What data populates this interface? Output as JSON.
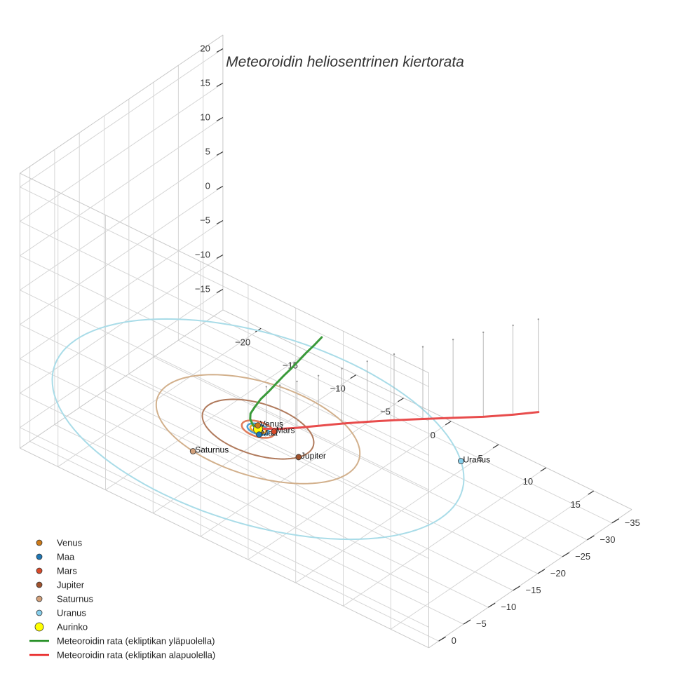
{
  "chart_data": {
    "type": "3d-line",
    "title": "Meteoroidin heliosentrinen kiertorata",
    "axes": {
      "x": {
        "range": [
          -24,
          19
        ],
        "ticks": [
          -20,
          -15,
          -10,
          -5,
          0,
          5,
          10,
          15
        ],
        "labels": [
          "−20",
          "−15",
          "−10",
          "−5",
          "0",
          "5",
          "10",
          "15"
        ]
      },
      "y": {
        "range": [
          -39,
          2
        ],
        "ticks": [
          -35,
          -30,
          -25,
          -20,
          -15,
          -10,
          -5,
          0
        ],
        "labels": [
          "−35",
          "−30",
          "−25",
          "−20",
          "−15",
          "−10",
          "−5",
          "0"
        ]
      },
      "z": {
        "range": [
          -18,
          22
        ],
        "ticks": [
          -15,
          -10,
          -5,
          0,
          5,
          10,
          15,
          20
        ],
        "labels": [
          "−15",
          "−10",
          "−5",
          "0",
          "5",
          "10",
          "15",
          "20"
        ]
      },
      "grid": true
    },
    "sun": {
      "name": "Aurinko",
      "color": "#ffff00",
      "x": 0,
      "y": 0,
      "z": 0
    },
    "planets": [
      {
        "name": "Venus",
        "color": "#cc7a1a",
        "orbit_radius": 0.72,
        "x": -0.35,
        "y": -0.63,
        "z": 0,
        "label": "Venus"
      },
      {
        "name": "Maa",
        "color": "#1f77b4",
        "orbit_radius": 1.0,
        "x": 0.55,
        "y": 0.84,
        "z": 0,
        "label": "Maa"
      },
      {
        "name": "Mars",
        "color": "#d84a2a",
        "orbit_radius": 1.52,
        "x": 1.2,
        "y": -0.93,
        "z": 0,
        "label": "Mars"
      },
      {
        "name": "Jupiter",
        "color": "#a0522d",
        "orbit_radius": 5.2,
        "x": 5.0,
        "y": 1.4,
        "z": 0,
        "label": "Jupiter"
      },
      {
        "name": "Saturnus",
        "color": "#d2a07a",
        "orbit_radius": 9.5,
        "x": -2.0,
        "y": 9.3,
        "z": 0,
        "label": "Saturnus"
      },
      {
        "name": "Uranus",
        "color": "#87ceeb",
        "orbit_radius": 19.2,
        "x": 15.3,
        "y": -11.6,
        "z": 0,
        "label": "Uranus"
      }
    ],
    "orbit_colors": {
      "Venus": "#f5a623",
      "Maa": "#4e9fd6",
      "Mars": "#e07b5a",
      "Jupiter": "#b07a5c",
      "Saturnus": "#d2b08c",
      "Uranus": "#a9dce8"
    },
    "series": [
      {
        "name": "Meteoroidin rata (ekliptikan yläpuolella)",
        "color": "#3a9a3a",
        "points": [
          [
            -0.3,
            0.0,
            0.0
          ],
          [
            -0.3,
            0.5,
            0.7
          ],
          [
            -0.1,
            1.4,
            2.1
          ],
          [
            0.3,
            2.1,
            3.5
          ],
          [
            0.9,
            2.4,
            5.0
          ],
          [
            1.6,
            2.5,
            6.7
          ],
          [
            2.4,
            2.5,
            8.3
          ],
          [
            3.2,
            2.5,
            10.0
          ],
          [
            4.0,
            2.5,
            11.7
          ],
          [
            4.8,
            2.5,
            13.3
          ],
          [
            5.6,
            2.5,
            15.0
          ],
          [
            6.4,
            2.5,
            16.7
          ],
          [
            7.2,
            2.5,
            18.3
          ],
          [
            8.0,
            2.5,
            20.0
          ]
        ]
      },
      {
        "name": "Meteoroidin rata (ekliptikan alapuolella)",
        "color": "#e84c4c",
        "points": [
          [
            0.0,
            0.0,
            0.0
          ],
          [
            0.4,
            -0.9,
            -0.1
          ],
          [
            1.1,
            -2.3,
            -0.35
          ],
          [
            1.8,
            -4.4,
            -0.75
          ],
          [
            2.6,
            -7.2,
            -1.3
          ],
          [
            3.4,
            -10.4,
            -2.0
          ],
          [
            4.3,
            -13.8,
            -2.8
          ],
          [
            5.3,
            -17.3,
            -3.6
          ],
          [
            6.4,
            -21.0,
            -4.5
          ],
          [
            7.6,
            -24.8,
            -5.4
          ],
          [
            8.8,
            -28.6,
            -6.3
          ],
          [
            10.0,
            -32.3,
            -7.0
          ],
          [
            11.0,
            -35.5,
            -7.5
          ]
        ]
      }
    ],
    "legend": {
      "placement": "bottom-left",
      "entries": [
        {
          "label": "Venus",
          "kind": "dot",
          "color": "#cc7a1a"
        },
        {
          "label": "Maa",
          "kind": "dot",
          "color": "#1f77b4"
        },
        {
          "label": "Mars",
          "kind": "dot",
          "color": "#d84a2a"
        },
        {
          "label": "Jupiter",
          "kind": "dot",
          "color": "#a0522d"
        },
        {
          "label": "Saturnus",
          "kind": "dot",
          "color": "#d2a07a"
        },
        {
          "label": "Uranus",
          "kind": "dot",
          "color": "#87ceeb"
        },
        {
          "label": "Aurinko",
          "kind": "bigdot",
          "color": "#ffff00"
        },
        {
          "label": "Meteoroidin rata (ekliptikan yläpuolella)",
          "kind": "line",
          "color": "#1a8a1a"
        },
        {
          "label": "Meteoroidin rata (ekliptikan alapuolella)",
          "kind": "line",
          "color": "#e82020"
        }
      ]
    }
  }
}
